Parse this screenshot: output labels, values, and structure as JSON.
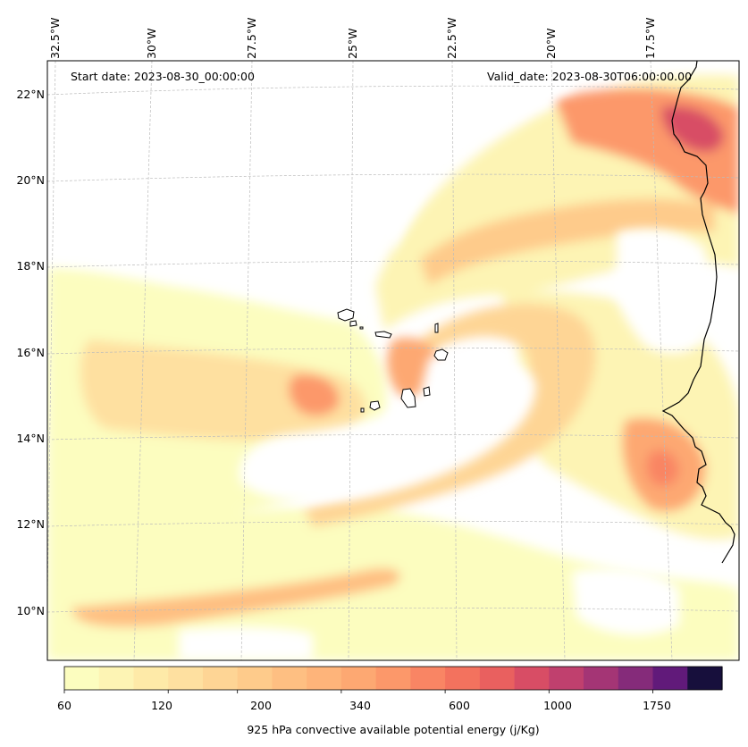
{
  "map": {
    "start_date": "Start date: 2023-08-30_00:00:00",
    "valid_date": "Valid_date: 2023-08-30T06:00:00.00",
    "longitude_labels": [
      "32.5°W",
      "30°W",
      "27.5°W",
      "25°W",
      "22.5°W",
      "20°W",
      "17.5°W"
    ],
    "latitude_labels": [
      "22°N",
      "20°N",
      "18°N",
      "16°N",
      "14°N",
      "12°N",
      "10°N"
    ],
    "islands": [
      "Santo Antão",
      "São Vicente",
      "Santa Luzia",
      "São Nicolau",
      "Sal",
      "Boa Vista",
      "Maio",
      "Santiago",
      "Fogo",
      "Brava"
    ],
    "coastline": "West Africa coast (Mauritania, Senegal, Gambia, Guinea-Bissau)"
  },
  "colorbar": {
    "title": "925 hPa convective available potential energy (j/Kg)",
    "tick_labels": [
      "60",
      "120",
      "200",
      "340",
      "600",
      "1000",
      "1750"
    ],
    "levels": [
      60,
      80,
      100,
      120,
      150,
      200,
      250,
      300,
      340,
      400,
      500,
      600,
      700,
      850,
      1000,
      1200,
      1500,
      1750,
      2000
    ],
    "colors": [
      "#fcfdbf",
      "#fdf4b4",
      "#feeaa8",
      "#fee0a0",
      "#fed595",
      "#fecb8b",
      "#febf82",
      "#feb47a",
      "#fda872",
      "#fc986a",
      "#f98564",
      "#f3725e",
      "#e9605f",
      "#d84d65",
      "#c0406e",
      "#a43575",
      "#852b7a",
      "#611a7a",
      "#170f3c"
    ],
    "colormap": "magma_r"
  }
}
